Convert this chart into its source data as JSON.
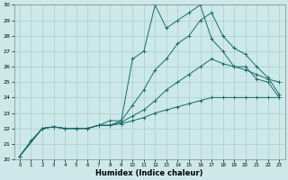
{
  "xlabel": "Humidex (Indice chaleur)",
  "ylabel": "",
  "xlim": [
    -0.5,
    23.5
  ],
  "ylim": [
    20,
    30
  ],
  "xticks": [
    0,
    1,
    2,
    3,
    4,
    5,
    6,
    7,
    8,
    9,
    10,
    11,
    12,
    13,
    14,
    15,
    16,
    17,
    18,
    19,
    20,
    21,
    22,
    23
  ],
  "yticks": [
    20,
    21,
    22,
    23,
    24,
    25,
    26,
    27,
    28,
    29,
    30
  ],
  "bg_color": "#cce8e8",
  "grid_color": "#aacece",
  "line_color": "#1a6b6b",
  "series": [
    {
      "x": [
        0,
        1,
        2,
        3,
        4,
        5,
        6,
        7,
        8,
        9,
        10,
        11,
        12,
        13,
        14,
        15,
        16,
        17,
        18,
        19,
        20,
        21,
        22,
        23
      ],
      "y": [
        20.2,
        21.2,
        22.0,
        22.1,
        22.0,
        22.0,
        22.0,
        22.2,
        22.5,
        22.5,
        26.5,
        27.0,
        30.0,
        28.5,
        29.0,
        29.5,
        30.0,
        27.8,
        27.0,
        26.0,
        26.0,
        25.2,
        25.0,
        24.0
      ]
    },
    {
      "x": [
        0,
        2,
        3,
        4,
        5,
        6,
        7,
        8,
        9,
        10,
        11,
        12,
        13,
        14,
        15,
        16,
        17,
        18,
        19,
        20,
        21,
        22,
        23
      ],
      "y": [
        20.2,
        22.0,
        22.1,
        22.0,
        22.0,
        22.0,
        22.2,
        22.2,
        22.5,
        23.5,
        24.5,
        25.8,
        26.5,
        27.5,
        28.0,
        29.0,
        29.5,
        28.0,
        27.2,
        26.8,
        26.0,
        25.3,
        24.2
      ]
    },
    {
      "x": [
        0,
        2,
        3,
        4,
        5,
        6,
        7,
        8,
        9,
        10,
        11,
        12,
        13,
        14,
        15,
        16,
        17,
        18,
        19,
        20,
        21,
        22,
        23
      ],
      "y": [
        20.2,
        22.0,
        22.1,
        22.0,
        22.0,
        22.0,
        22.2,
        22.2,
        22.4,
        22.8,
        23.2,
        23.8,
        24.5,
        25.0,
        25.5,
        26.0,
        26.5,
        26.2,
        26.0,
        25.8,
        25.5,
        25.2,
        25.0
      ]
    },
    {
      "x": [
        0,
        2,
        3,
        4,
        5,
        6,
        7,
        8,
        9,
        10,
        11,
        12,
        13,
        14,
        15,
        16,
        17,
        18,
        19,
        20,
        21,
        22,
        23
      ],
      "y": [
        20.2,
        22.0,
        22.1,
        22.0,
        22.0,
        22.0,
        22.2,
        22.2,
        22.3,
        22.5,
        22.7,
        23.0,
        23.2,
        23.4,
        23.6,
        23.8,
        24.0,
        24.0,
        24.0,
        24.0,
        24.0,
        24.0,
        24.0
      ]
    }
  ]
}
